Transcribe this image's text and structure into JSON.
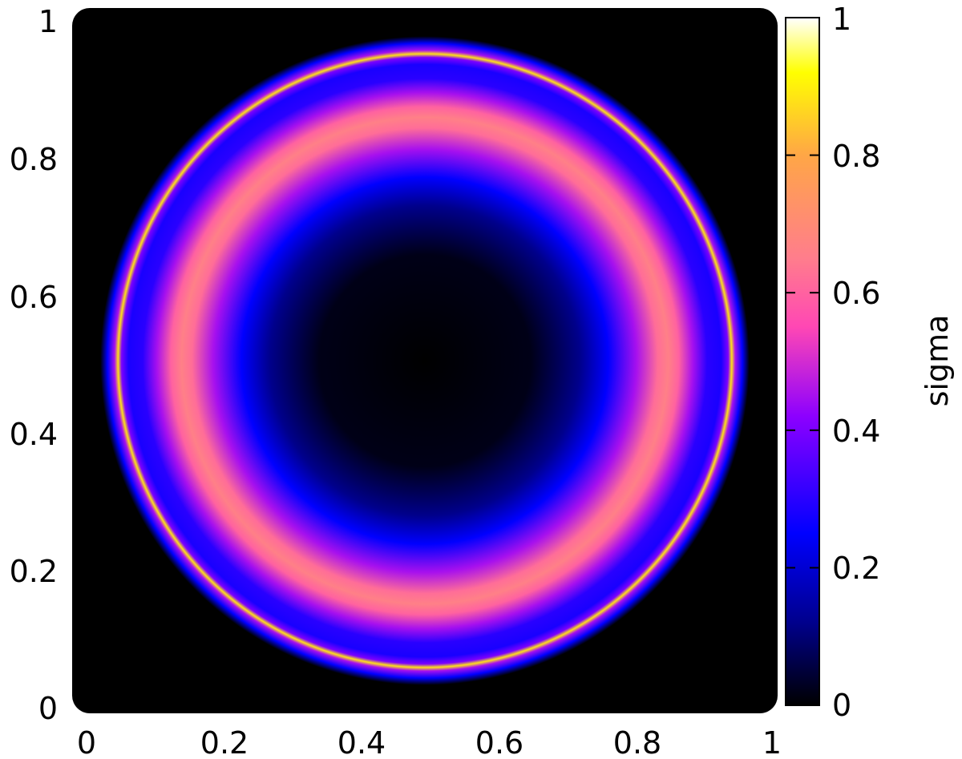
{
  "chart_data": {
    "type": "heatmap",
    "title": "",
    "xlabel": "",
    "ylabel": "",
    "xlim": [
      0,
      1
    ],
    "ylim": [
      0,
      1
    ],
    "x_ticks": [
      "0",
      "0.2",
      "0.4",
      "0.6",
      "0.8",
      "1"
    ],
    "y_ticks": [
      "0",
      "0.2",
      "0.4",
      "0.6",
      "0.8",
      "1"
    ],
    "grid": false,
    "legend": "none",
    "colorbar": {
      "label": "sigma",
      "range": [
        0,
        1
      ],
      "ticks": [
        "0",
        "0.2",
        "0.4",
        "0.6",
        "0.8",
        "1"
      ],
      "position": "right",
      "colormap": [
        {
          "value": 0.0,
          "color": "#000000"
        },
        {
          "value": 0.12,
          "color": "#00008c"
        },
        {
          "value": 0.25,
          "color": "#0000ff"
        },
        {
          "value": 0.42,
          "color": "#8c00ff"
        },
        {
          "value": 0.55,
          "color": "#ff47b4"
        },
        {
          "value": 0.65,
          "color": "#ff7d8c"
        },
        {
          "value": 0.8,
          "color": "#ffa646"
        },
        {
          "value": 0.92,
          "color": "#ffff00"
        },
        {
          "value": 1.0,
          "color": "#ffffff"
        }
      ]
    },
    "field": {
      "description_values": "sigma as a function of radius from the domain centre",
      "center": [
        0.5,
        0.5
      ],
      "radial_profile": [
        {
          "r": 0.0,
          "sigma": 0.0
        },
        {
          "r": 0.15,
          "sigma": 0.02
        },
        {
          "r": 0.22,
          "sigma": 0.12
        },
        {
          "r": 0.26,
          "sigma": 0.25
        },
        {
          "r": 0.3,
          "sigma": 0.45
        },
        {
          "r": 0.33,
          "sigma": 0.62
        },
        {
          "r": 0.345,
          "sigma": 0.66
        },
        {
          "r": 0.36,
          "sigma": 0.6
        },
        {
          "r": 0.38,
          "sigma": 0.45
        },
        {
          "r": 0.4,
          "sigma": 0.3
        },
        {
          "r": 0.42,
          "sigma": 0.28
        },
        {
          "r": 0.43,
          "sigma": 0.4
        },
        {
          "r": 0.435,
          "sigma": 0.88
        },
        {
          "r": 0.44,
          "sigma": 0.45
        },
        {
          "r": 0.45,
          "sigma": 0.25
        },
        {
          "r": 0.46,
          "sigma": 0.0
        },
        {
          "r": 1.0,
          "sigma": 0.0
        }
      ]
    }
  }
}
